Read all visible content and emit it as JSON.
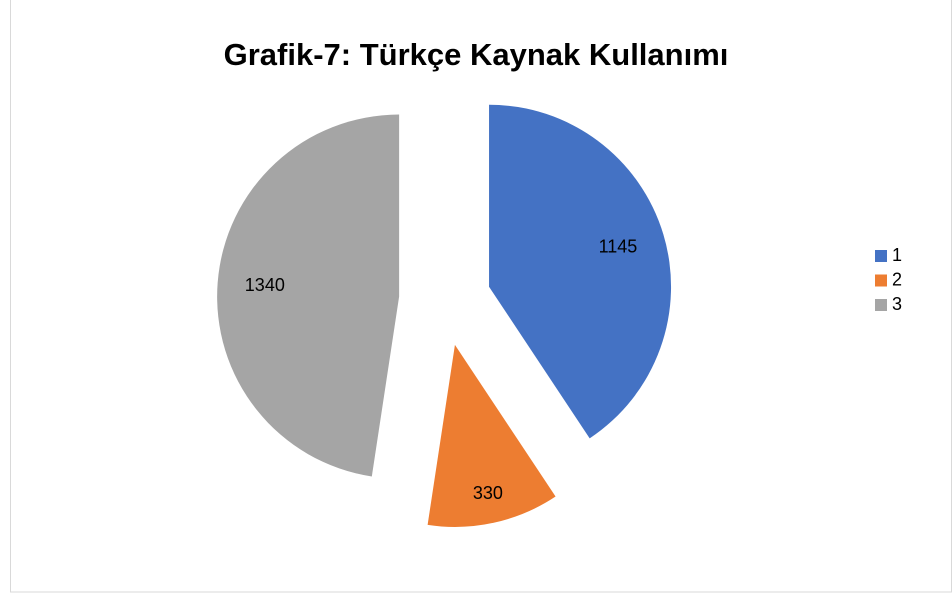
{
  "chart_data": {
    "type": "pie",
    "title": "Grafik-7: Türkçe Kaynak Kullanımı",
    "categories": [
      "1",
      "2",
      "3"
    ],
    "values": [
      1145,
      330,
      1340
    ],
    "colors": [
      "#4472c4",
      "#ed7d31",
      "#a5a5a5"
    ],
    "legend": "right",
    "exploded": true
  }
}
